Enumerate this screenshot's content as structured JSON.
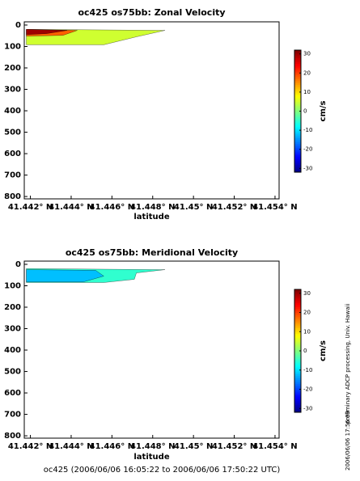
{
  "chart_data": [
    {
      "type": "contour",
      "title": "oc425 os75bb: Zonal Velocity",
      "xlabel": "latitude",
      "colorbar_label": "cm/s",
      "xlim": [
        41.4417,
        41.4542
      ],
      "ylim": [
        -15,
        811
      ],
      "y_reversed": true,
      "xticks": [
        {
          "value": 41.442,
          "label": "41.442° N"
        },
        {
          "value": 41.444,
          "label": "41.444° N"
        },
        {
          "value": 41.446,
          "label": "41.446° N"
        },
        {
          "value": 41.448,
          "label": "41.448° N"
        },
        {
          "value": 41.45,
          "label": "41.45° N"
        },
        {
          "value": 41.452,
          "label": "41.452° N"
        },
        {
          "value": 41.454,
          "label": "41.454° N"
        }
      ],
      "yticks": [
        0,
        100,
        200,
        300,
        400,
        500,
        600,
        700,
        800
      ],
      "clim": [
        -32,
        32
      ],
      "cticks": [
        -30,
        -20,
        -10,
        0,
        10,
        20,
        30
      ],
      "patches": [
        {
          "value": 5,
          "lat": [
            41.4418,
            41.4486,
            41.4472,
            41.4456,
            41.4418
          ],
          "depth": [
            20,
            25,
            55,
            92,
            92
          ]
        },
        {
          "value": 18,
          "lat": [
            41.4418,
            41.4443,
            41.4436,
            41.4418
          ],
          "depth": [
            20,
            25,
            48,
            52
          ]
        },
        {
          "value": 30,
          "lat": [
            41.4418,
            41.4438,
            41.4428,
            41.4418
          ],
          "depth": [
            20,
            25,
            40,
            45
          ]
        }
      ]
    },
    {
      "type": "contour",
      "title": "oc425 os75bb: Meridional Velocity",
      "xlabel": "latitude",
      "colorbar_label": "cm/s",
      "xlim": [
        41.4417,
        41.4542
      ],
      "ylim": [
        -15,
        811
      ],
      "y_reversed": true,
      "xticks": [
        {
          "value": 41.442,
          "label": "41.442° N"
        },
        {
          "value": 41.444,
          "label": "41.444° N"
        },
        {
          "value": 41.446,
          "label": "41.446° N"
        },
        {
          "value": 41.448,
          "label": "41.448° N"
        },
        {
          "value": 41.45,
          "label": "41.45° N"
        },
        {
          "value": 41.452,
          "label": "41.452° N"
        },
        {
          "value": 41.454,
          "label": "41.454° N"
        }
      ],
      "yticks": [
        0,
        100,
        200,
        300,
        400,
        500,
        600,
        700,
        800
      ],
      "clim": [
        -32,
        32
      ],
      "cticks": [
        -30,
        -20,
        -10,
        0,
        10,
        20,
        30
      ],
      "patches": [
        {
          "value": -5,
          "lat": [
            41.4418,
            41.4486,
            41.4472,
            41.4471,
            41.4456,
            41.4418
          ],
          "depth": [
            20,
            25,
            40,
            70,
            85,
            85
          ]
        },
        {
          "value": -12,
          "lat": [
            41.4418,
            41.4452,
            41.4456,
            41.4446,
            41.4418
          ],
          "depth": [
            25,
            28,
            55,
            82,
            82
          ]
        }
      ]
    }
  ],
  "footer": "oc425 (2006/06/06 16:05:22 to 2006/06/06 17:50:22 UTC)",
  "side_note": "preliminary ADCP processing,   Univ. Hawaii",
  "timestamp": "2006/06/06 17:56:09"
}
